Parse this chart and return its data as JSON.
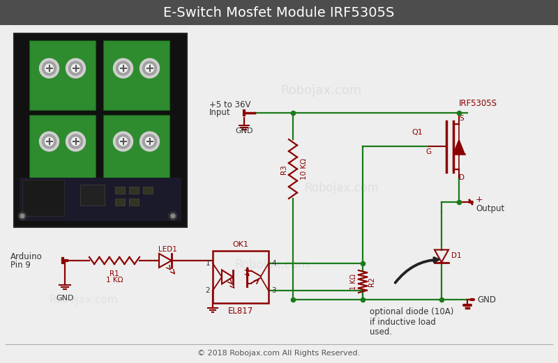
{
  "title": "E-Switch Mosfet Module IRF5305S",
  "title_bg": "#4d4d4d",
  "title_color": "#ffffff",
  "bg_color": "#eeeeee",
  "schematic_bg": "#f2f2f2",
  "wire_green": "#1a7a1a",
  "wire_red": "#8b0000",
  "comp_color": "#8b0000",
  "text_color": "#333333",
  "ok1_color": "#8b0000",
  "wm_color": "#cccccc",
  "wm_alpha": 0.45,
  "wm_text": "Robojax.com",
  "copyright": "© 2018 Robojax.com All Rights Reserved.",
  "footer_color": "#aaaaaa",
  "lw": 1.6,
  "clw": 1.6
}
